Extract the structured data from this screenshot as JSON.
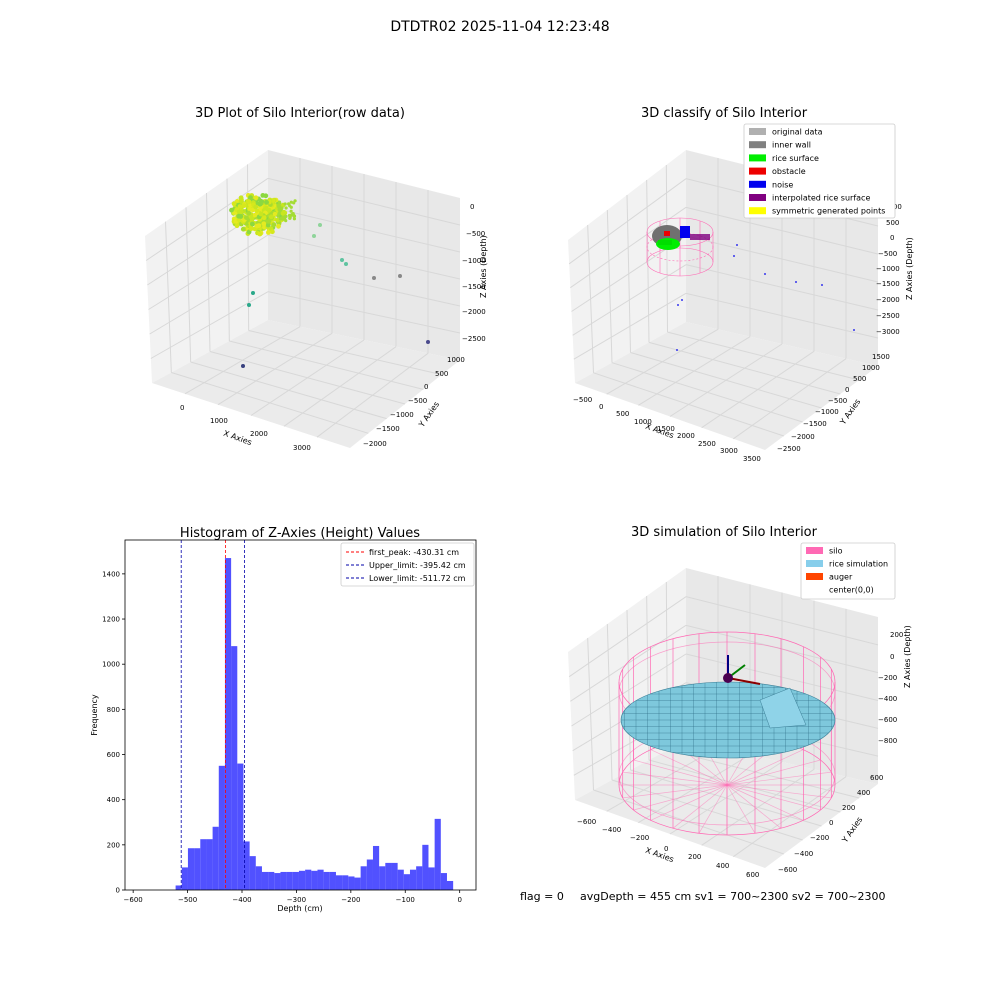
{
  "figure": {
    "suptitle": "DTDTR02 2025-11-04 12:23:48",
    "footer": {
      "flag": "flag = 0",
      "stats": "avgDepth = 455 cm  sv1 = 700~2300  sv2 = 700~2300"
    }
  },
  "chart_data": [
    {
      "type": "scatter",
      "projection": "3d",
      "title": "3D Plot of Silo Interior(row data)",
      "xlabel": "X Axies",
      "ylabel": "Y Axies",
      "zlabel": "Z Axies (Depth)",
      "xticks": [
        "0",
        "1000",
        "2000",
        "3000"
      ],
      "yticks": [
        "1000",
        "500",
        "0",
        "−500",
        "−1000",
        "−1500",
        "−2000"
      ],
      "zticks": [
        "0",
        "−500",
        "−1000",
        "−1500",
        "−2000",
        "−2500"
      ],
      "grid": true,
      "cluster": {
        "x_range": [
          -200,
          400
        ],
        "y_range": [
          -200,
          400
        ],
        "z_range": [
          -500,
          -250
        ],
        "color": "yellow-green"
      },
      "outliers": [
        {
          "x": 700,
          "y": 0,
          "z": -300
        },
        {
          "x": 1100,
          "y": -200,
          "z": -700
        },
        {
          "x": 1500,
          "y": -600,
          "z": -1000
        },
        {
          "x": 2200,
          "y": -1000,
          "z": -1400
        },
        {
          "x": 300,
          "y": 900,
          "z": -1400
        },
        {
          "x": 200,
          "y": 700,
          "z": -1800
        },
        {
          "x": 3300,
          "y": -1800,
          "z": -2300
        },
        {
          "x": 900,
          "y": 200,
          "z": -2500
        }
      ]
    },
    {
      "type": "scatter",
      "projection": "3d",
      "title": "3D classify of Silo Interior",
      "xlabel": "X Axies",
      "ylabel": "Y Axies",
      "zlabel": "Z Axies (Depth)",
      "xticks": [
        "−500",
        "0",
        "500",
        "1000",
        "1500",
        "2000",
        "2500",
        "3000",
        "3500"
      ],
      "yticks": [
        "1500",
        "1000",
        "500",
        "0",
        "−500",
        "−1000",
        "−1500",
        "−2000",
        "−2500"
      ],
      "zticks": [
        "1000",
        "500",
        "0",
        "−500",
        "−1000",
        "−1500",
        "−2000",
        "−2500",
        "−3000"
      ],
      "grid": true,
      "legend": {
        "placement": "upper right",
        "entries": [
          {
            "label": "original data",
            "color": "#b0b0b0"
          },
          {
            "label": "inner wall",
            "color": "#808080"
          },
          {
            "label": "rice surface",
            "color": "#00ee00"
          },
          {
            "label": "obstacle",
            "color": "#ee0000"
          },
          {
            "label": "noise",
            "color": "#0000ee"
          },
          {
            "label": "interpolated rice surface",
            "color": "#800080"
          },
          {
            "label": "symmetric generated points",
            "color": "#ffff00"
          }
        ]
      }
    },
    {
      "type": "bar",
      "title": "Histogram of Z-Axies (Height) Values",
      "xlabel": "Depth (cm)",
      "ylabel": "Frequency",
      "xlim": [
        -615,
        30
      ],
      "ylim": [
        0,
        1550
      ],
      "xticks": [
        -600,
        -500,
        -400,
        -300,
        -200,
        -100,
        0
      ],
      "yticks": [
        0,
        200,
        400,
        600,
        800,
        1000,
        1200,
        1400
      ],
      "bar_color": "#3333ff",
      "bin_width": 10,
      "bins": [
        {
          "x": -520,
          "v": 20
        },
        {
          "x": -510,
          "v": 100
        },
        {
          "x": -500,
          "v": 185
        },
        {
          "x": -490,
          "v": 185
        },
        {
          "x": -480,
          "v": 225
        },
        {
          "x": -470,
          "v": 225
        },
        {
          "x": -460,
          "v": 280
        },
        {
          "x": -450,
          "v": 550
        },
        {
          "x": -440,
          "v": 1470
        },
        {
          "x": -430,
          "v": 1080
        },
        {
          "x": -420,
          "v": 560
        },
        {
          "x": -410,
          "v": 215
        },
        {
          "x": -400,
          "v": 150
        },
        {
          "x": -390,
          "v": 105
        },
        {
          "x": -380,
          "v": 80
        },
        {
          "x": -370,
          "v": 80
        },
        {
          "x": -360,
          "v": 75
        },
        {
          "x": -350,
          "v": 80
        },
        {
          "x": -340,
          "v": 80
        },
        {
          "x": -330,
          "v": 80
        },
        {
          "x": -320,
          "v": 85
        },
        {
          "x": -310,
          "v": 90
        },
        {
          "x": -300,
          "v": 85
        },
        {
          "x": -290,
          "v": 90
        },
        {
          "x": -280,
          "v": 80
        },
        {
          "x": -270,
          "v": 80
        },
        {
          "x": -260,
          "v": 65
        },
        {
          "x": -250,
          "v": 65
        },
        {
          "x": -240,
          "v": 60
        },
        {
          "x": -230,
          "v": 55
        },
        {
          "x": -220,
          "v": 105
        },
        {
          "x": -210,
          "v": 135
        },
        {
          "x": -200,
          "v": 195
        },
        {
          "x": -190,
          "v": 105
        },
        {
          "x": -180,
          "v": 120
        },
        {
          "x": -170,
          "v": 120
        },
        {
          "x": -160,
          "v": 90
        },
        {
          "x": -150,
          "v": 70
        },
        {
          "x": -140,
          "v": 90
        },
        {
          "x": -130,
          "v": 105
        },
        {
          "x": -120,
          "v": 200
        },
        {
          "x": -110,
          "v": 100
        },
        {
          "x": -100,
          "v": 315
        },
        {
          "x": -90,
          "v": 75
        },
        {
          "x": -80,
          "v": 40
        }
      ],
      "vlines": [
        {
          "x": -430.31,
          "color": "#ff0000",
          "label": "first_peak: -430.31 cm"
        },
        {
          "x": -395.42,
          "color": "#0000aa",
          "label": "Upper_limit: -395.42 cm"
        },
        {
          "x": -511.72,
          "color": "#0000aa",
          "label": "Lower_limit: -511.72 cm"
        }
      ],
      "legend": {
        "placement": "upper right"
      }
    },
    {
      "type": "surface",
      "projection": "3d",
      "title": "3D simulation of Silo Interior",
      "xlabel": "X Axies",
      "ylabel": "Y Axies",
      "zlabel": "Z Axies (Depth)",
      "xticks": [
        "−600",
        "−400",
        "−200",
        "0",
        "200",
        "400",
        "600"
      ],
      "yticks": [
        "600",
        "400",
        "200",
        "0",
        "−200",
        "−400",
        "−600"
      ],
      "zticks": [
        "200",
        "0",
        "−200",
        "−400",
        "−600",
        "−800"
      ],
      "grid": true,
      "legend": {
        "placement": "upper right",
        "entries": [
          {
            "label": "silo",
            "color": "#ff69b4"
          },
          {
            "label": "rice simulation",
            "color": "#87ceeb"
          },
          {
            "label": "auger",
            "color": "#ff4500"
          },
          {
            "label": "center(0,0)",
            "color": ""
          }
        ]
      }
    }
  ]
}
